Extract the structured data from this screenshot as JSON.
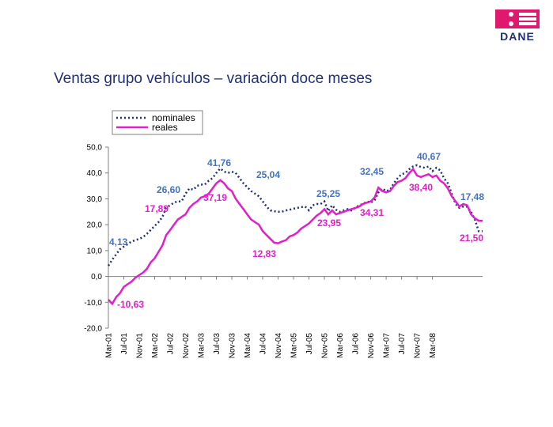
{
  "slide": {
    "title": "Ventas grupo vehículos – variación doce meses",
    "logo_text": "DANE",
    "colors": {
      "brand": "#e0196e",
      "title": "#1f2f7a"
    }
  },
  "chart_data": {
    "type": "line",
    "title": "Ventas grupo vehículos – variación doce meses",
    "xlabel": "",
    "ylabel": "",
    "ylim": [
      -20,
      50
    ],
    "yticks": [
      -20,
      -10,
      0,
      10,
      20,
      30,
      40,
      50
    ],
    "ytick_labels": [
      "-20,0",
      "-10,0",
      "0,0",
      "10,0",
      "20,0",
      "30,0",
      "40,0",
      "50,0"
    ],
    "grid": false,
    "legend_position": "top-left",
    "x_tick_labels": [
      "Mar-01",
      "Jul-01",
      "Nov-01",
      "Mar-02",
      "Jul-02",
      "Nov-02",
      "Mar-03",
      "Jul-03",
      "Nov-03",
      "Mar-04",
      "Jul-04",
      "Nov-04",
      "Mar-05",
      "Jul-05",
      "Nov-05",
      "Mar-06",
      "Jul-06",
      "Nov-06",
      "Mar-07",
      "Jul-07",
      "Nov-07",
      "Mar-08"
    ],
    "x_tick_start_index": 0,
    "x_tick_step": 4,
    "months_count": 85,
    "series": [
      {
        "name": "nominales",
        "color": "#1f2f7a",
        "style": "dotted",
        "values": [
          4.13,
          6.5,
          8.5,
          10.5,
          11.5,
          12.5,
          13.5,
          14,
          14.5,
          15.2,
          16.5,
          18,
          19.5,
          21,
          23,
          26.6,
          27.5,
          28.5,
          29,
          29,
          32,
          34,
          33.5,
          35,
          35.5,
          35.5,
          37,
          38,
          40,
          41.76,
          40.5,
          40,
          40.5,
          40,
          38,
          36,
          34.5,
          33,
          32,
          31,
          29,
          27,
          25.5,
          25.2,
          25,
          25.04,
          25.5,
          25.8,
          26.2,
          26.5,
          26.8,
          27,
          25.5,
          27.5,
          28,
          28,
          29,
          25.25,
          27.5,
          25.8,
          25,
          25.5,
          26,
          25.5,
          26.5,
          27.5,
          28,
          29,
          28.5,
          29.5,
          32.45,
          34,
          33,
          33.5,
          36,
          38,
          39.5,
          40,
          41.5,
          42.5,
          43,
          42.3,
          42,
          42.5,
          40.67
        ]
      },
      {
        "name": "reales",
        "color": "#e020c8",
        "style": "solid",
        "values": [
          -9,
          -10.63,
          -8,
          -6.5,
          -4,
          -3,
          -2,
          -0.5,
          0.5,
          1.5,
          3,
          5.5,
          7,
          9.5,
          12,
          16,
          17.89,
          20,
          22,
          23,
          24,
          26.5,
          28,
          29,
          30.5,
          31,
          32,
          34,
          36,
          37.19,
          36,
          34,
          33,
          30,
          28,
          26,
          24,
          22,
          21,
          20,
          17.5,
          16,
          14.5,
          13,
          12.83,
          13.5,
          14,
          15.5,
          16,
          17,
          18.5,
          19.5,
          20.5,
          22,
          23.5,
          24.5,
          26,
          23.95,
          25.5,
          24,
          24.5,
          25,
          25.5,
          26,
          26.5,
          27,
          28,
          28.5,
          29,
          30.5,
          34.31,
          33,
          32.5,
          33,
          35,
          36.5,
          37,
          38,
          40,
          41.5,
          39,
          38.4,
          39,
          39.5,
          38.4
        ]
      }
    ],
    "series_tail": {
      "months_after": 13,
      "nominales": [
        42,
        41,
        38,
        36,
        32,
        28,
        26.5,
        27,
        27,
        25,
        22,
        17.48,
        17.48
      ],
      "reales": [
        39,
        37,
        36,
        34,
        31,
        29,
        27,
        28,
        27.5,
        24,
        22.5,
        21.5,
        21.5
      ]
    },
    "annotations": [
      {
        "series": "nominales",
        "text": "4,13"
      },
      {
        "series": "nominales",
        "text": "26,60"
      },
      {
        "series": "nominales",
        "text": "41,76"
      },
      {
        "series": "nominales",
        "text": "25,04"
      },
      {
        "series": "nominales",
        "text": "25,25"
      },
      {
        "series": "nominales",
        "text": "32,45"
      },
      {
        "series": "nominales",
        "text": "40,67"
      },
      {
        "series": "nominales",
        "text": "17,48"
      },
      {
        "series": "reales",
        "text": "-10,63"
      },
      {
        "series": "reales",
        "text": "17,89"
      },
      {
        "series": "reales",
        "text": "37,19"
      },
      {
        "series": "reales",
        "text": "12,83"
      },
      {
        "series": "reales",
        "text": "23,95"
      },
      {
        "series": "reales",
        "text": "34,31"
      },
      {
        "series": "reales",
        "text": "38,40"
      },
      {
        "series": "reales",
        "text": "21,50"
      }
    ]
  }
}
